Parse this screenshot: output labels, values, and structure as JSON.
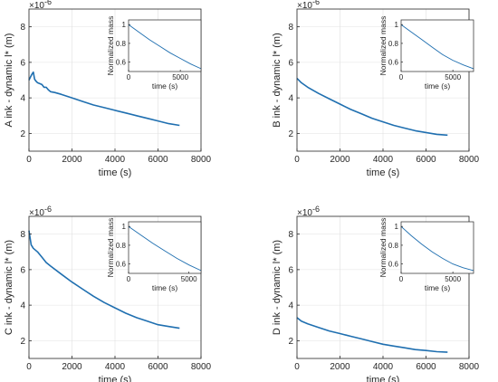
{
  "chart_data": [
    {
      "type": "line",
      "panel": "A",
      "xlabel": "time (s)",
      "ylabel": "A ink - dynamic l* (m)",
      "exponent_base": "×10",
      "exponent_power": "-6",
      "xlim": [
        0,
        8000
      ],
      "ylim": [
        1,
        9
      ],
      "xticks": [
        "0",
        "2000",
        "4000",
        "6000",
        "8000"
      ],
      "yticks": [
        "2",
        "4",
        "6",
        "8"
      ],
      "grid": true,
      "line_color": "#1f6fb0",
      "series": [
        {
          "x": [
            0,
            60,
            120,
            200,
            260,
            320,
            400,
            500,
            600,
            700,
            800,
            900,
            1000,
            1200,
            1500,
            2000,
            2500,
            3000,
            3500,
            4000,
            4500,
            5000,
            5500,
            6000,
            6500,
            7000
          ],
          "y": [
            5.0,
            5.15,
            5.3,
            5.45,
            5.05,
            4.95,
            4.85,
            4.8,
            4.75,
            4.6,
            4.6,
            4.45,
            4.35,
            4.3,
            4.2,
            4.0,
            3.8,
            3.6,
            3.45,
            3.3,
            3.15,
            3.0,
            2.85,
            2.7,
            2.55,
            2.45
          ]
        }
      ],
      "inset": {
        "xlabel": "time (s)",
        "ylabel": "Normalized mass",
        "xlim": [
          0,
          7000
        ],
        "ylim": [
          0.5,
          1.05
        ],
        "xticks": [
          "0",
          "5000"
        ],
        "yticks": [
          "0.6",
          "0.8",
          "1"
        ],
        "x": [
          0,
          1000,
          2000,
          3000,
          4000,
          5000,
          6000,
          7000
        ],
        "y": [
          1.0,
          0.92,
          0.84,
          0.77,
          0.7,
          0.64,
          0.58,
          0.53
        ]
      }
    },
    {
      "type": "line",
      "panel": "B",
      "xlabel": "time (s)",
      "ylabel": "B ink - dynamic l* (m)",
      "exponent_base": "×10",
      "exponent_power": "-6",
      "xlim": [
        0,
        8000
      ],
      "ylim": [
        1,
        9
      ],
      "xticks": [
        "0",
        "2000",
        "4000",
        "6000",
        "8000"
      ],
      "yticks": [
        "2",
        "4",
        "6",
        "8"
      ],
      "grid": true,
      "line_color": "#1f6fb0",
      "series": [
        {
          "x": [
            0,
            200,
            500,
            1000,
            1500,
            2000,
            2500,
            3000,
            3500,
            4000,
            4500,
            5000,
            5500,
            6000,
            6500,
            7000
          ],
          "y": [
            5.1,
            4.85,
            4.6,
            4.25,
            3.95,
            3.65,
            3.35,
            3.1,
            2.85,
            2.65,
            2.45,
            2.3,
            2.15,
            2.05,
            1.95,
            1.9
          ]
        }
      ],
      "inset": {
        "xlabel": "time (s)",
        "ylabel": "Normalized mass",
        "xlim": [
          0,
          7000
        ],
        "ylim": [
          0.5,
          1.05
        ],
        "xticks": [
          "0",
          "5000"
        ],
        "yticks": [
          "0.6",
          "0.8",
          "1"
        ],
        "x": [
          0,
          1000,
          2000,
          3000,
          4000,
          5000,
          6000,
          7000
        ],
        "y": [
          1.0,
          0.92,
          0.84,
          0.76,
          0.68,
          0.62,
          0.57,
          0.53
        ]
      }
    },
    {
      "type": "line",
      "panel": "C",
      "xlabel": "time (s)",
      "ylabel": "C ink - dynamic l* (m)",
      "exponent_base": "×10",
      "exponent_power": "-6",
      "xlim": [
        0,
        8000
      ],
      "ylim": [
        1,
        9
      ],
      "xticks": [
        "0",
        "2000",
        "4000",
        "6000",
        "8000"
      ],
      "yticks": [
        "2",
        "4",
        "6",
        "8"
      ],
      "grid": true,
      "line_color": "#1f6fb0",
      "series": [
        {
          "x": [
            0,
            50,
            100,
            200,
            400,
            600,
            800,
            1000,
            1500,
            2000,
            2500,
            3000,
            3500,
            4000,
            4500,
            5000,
            5500,
            6000,
            6500,
            7000
          ],
          "y": [
            8.2,
            7.8,
            7.4,
            7.2,
            7.0,
            6.7,
            6.4,
            6.2,
            5.75,
            5.3,
            4.9,
            4.5,
            4.15,
            3.85,
            3.55,
            3.3,
            3.1,
            2.9,
            2.8,
            2.7
          ]
        }
      ],
      "inset": {
        "xlabel": "time (s)",
        "ylabel": "Normalized mass",
        "xlim": [
          0,
          6000
        ],
        "ylim": [
          0.5,
          1.05
        ],
        "xticks": [
          "0",
          "5000"
        ],
        "yticks": [
          "0.6",
          "0.8",
          "1"
        ],
        "x": [
          0,
          1000,
          2000,
          3000,
          4000,
          5000,
          6000
        ],
        "y": [
          1.0,
          0.91,
          0.82,
          0.74,
          0.66,
          0.59,
          0.53
        ]
      }
    },
    {
      "type": "line",
      "panel": "D",
      "xlabel": "time (s)",
      "ylabel": "D ink - dynamic l* (m)",
      "exponent_base": "×10",
      "exponent_power": "-6",
      "xlim": [
        0,
        8000
      ],
      "ylim": [
        1,
        9
      ],
      "xticks": [
        "0",
        "2000",
        "4000",
        "6000",
        "8000"
      ],
      "yticks": [
        "2",
        "4",
        "6",
        "8"
      ],
      "grid": true,
      "line_color": "#1f6fb0",
      "series": [
        {
          "x": [
            0,
            200,
            500,
            1000,
            1500,
            2000,
            2500,
            3000,
            3500,
            4000,
            4500,
            5000,
            5500,
            6000,
            6500,
            7000
          ],
          "y": [
            3.3,
            3.1,
            2.95,
            2.75,
            2.55,
            2.4,
            2.25,
            2.1,
            1.95,
            1.8,
            1.7,
            1.6,
            1.5,
            1.45,
            1.38,
            1.35
          ]
        }
      ],
      "inset": {
        "xlabel": "time (s)",
        "ylabel": "Normalized mass",
        "xlim": [
          0,
          7000
        ],
        "ylim": [
          0.5,
          1.05
        ],
        "xticks": [
          "0",
          "5000"
        ],
        "yticks": [
          "0.6",
          "0.8",
          "1"
        ],
        "x": [
          0,
          1000,
          2000,
          3000,
          4000,
          5000,
          6000,
          7000
        ],
        "y": [
          1.0,
          0.9,
          0.81,
          0.73,
          0.66,
          0.6,
          0.56,
          0.53
        ]
      }
    }
  ]
}
